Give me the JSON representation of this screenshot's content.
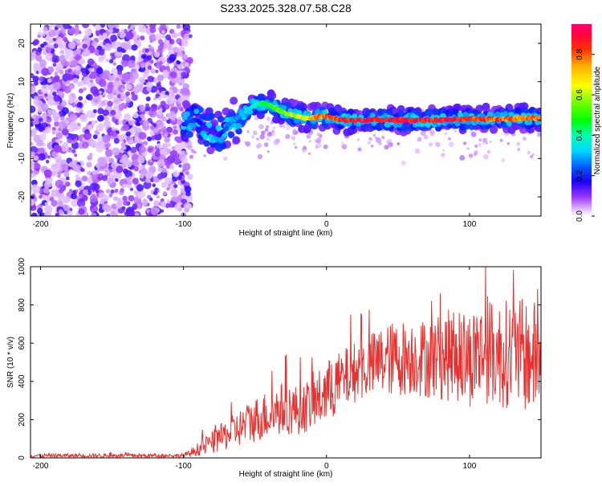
{
  "title": "S233.2025.328.07.58.C28",
  "chart_data": [
    {
      "type": "heatmap",
      "name": "spectrogram",
      "xlabel": "Height of straight line (km)",
      "ylabel": "Frequency (Hz)",
      "xlim": [
        -207,
        150
      ],
      "ylim": [
        -25,
        25
      ],
      "xticks": [
        -200,
        -100,
        0,
        100
      ],
      "yticks": [
        -20,
        -10,
        0,
        10,
        20
      ],
      "colorbar": {
        "label": "Normalized spectral amplitude",
        "range": [
          0,
          0.95
        ],
        "ticks": [
          0.0,
          0.2,
          0.4,
          0.6,
          0.8
        ]
      },
      "ridge": {
        "x": [
          -100,
          -95,
          -90,
          -85,
          -80,
          -75,
          -70,
          -65,
          -60,
          -55,
          -50,
          -45,
          -40,
          -35,
          -30,
          -25,
          -20,
          -15,
          -10,
          -5,
          0,
          5,
          10,
          20,
          40,
          60,
          80,
          100,
          120,
          140,
          150
        ],
        "freq": [
          -1,
          0,
          0,
          -2,
          -3,
          -4,
          -2,
          0,
          1,
          3,
          4,
          4.5,
          4,
          3,
          2,
          1.5,
          1,
          0.5,
          0.5,
          1,
          1,
          0.5,
          0,
          0,
          0,
          0,
          0,
          0.3,
          0.3,
          0.5,
          0.5
        ],
        "amplitude": [
          0.2,
          0.25,
          0.2,
          0.15,
          0.15,
          0.15,
          0.25,
          0.3,
          0.3,
          0.35,
          0.4,
          0.45,
          0.5,
          0.55,
          0.6,
          0.62,
          0.65,
          0.7,
          0.75,
          0.8,
          0.82,
          0.85,
          0.9,
          0.92,
          0.93,
          0.93,
          0.92,
          0.9,
          0.85,
          0.8,
          0.8
        ]
      },
      "noise_region_x": [
        -207,
        -95
      ]
    },
    {
      "type": "line",
      "name": "snr",
      "xlabel": "Height of straight line (km)",
      "ylabel": "SNR (10 * v/v)",
      "xlim": [
        -207,
        150
      ],
      "ylim": [
        0,
        1000
      ],
      "xticks": [
        -200,
        -100,
        0,
        100
      ],
      "yticks": [
        0,
        200,
        400,
        600,
        800,
        1000
      ],
      "color": "#e8312e",
      "envelope": {
        "x": [
          -207,
          -100,
          -95,
          -90,
          -80,
          -70,
          -60,
          -50,
          -40,
          -30,
          -20,
          -10,
          0,
          10,
          20,
          30,
          40,
          50,
          60,
          70,
          80,
          90,
          100,
          110,
          120,
          130,
          140,
          150
        ],
        "mean": [
          12,
          12,
          25,
          45,
          80,
          120,
          160,
          200,
          230,
          260,
          250,
          280,
          340,
          400,
          450,
          480,
          510,
          520,
          530,
          520,
          530,
          540,
          520,
          560,
          540,
          550,
          530,
          520
        ],
        "spread": [
          10,
          10,
          20,
          35,
          60,
          80,
          100,
          120,
          130,
          140,
          130,
          140,
          170,
          160,
          160,
          170,
          190,
          200,
          200,
          210,
          230,
          250,
          260,
          270,
          280,
          290,
          300,
          300
        ]
      }
    }
  ]
}
